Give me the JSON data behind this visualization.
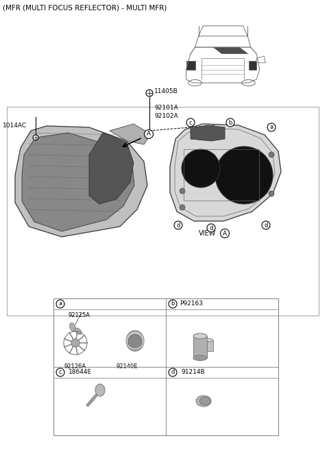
{
  "title": "(MFR (MULTI FOCUS REFLECTOR) - MULTI MFR)",
  "bg_color": "#ffffff",
  "border_color": "#aaaaaa",
  "text_color": "#000000",
  "part_label_11405B": "11405B",
  "part_label_92101A": "92101A",
  "part_label_92102A": "92102A",
  "part_label_1014AC": "1014AC",
  "part_label_92125A": "92125A",
  "part_label_92140E": "92140E",
  "part_label_92126A": "92126A",
  "part_label_P92163": "P92163",
  "part_label_18644E": "18644E",
  "part_label_91214B": "91214B",
  "view_text": "VIEW",
  "circle_A": "A",
  "gray_part": "#aaaaaa",
  "dark_gray": "#555555",
  "mid_gray": "#888888",
  "light_gray": "#cccccc",
  "very_dark": "#222222"
}
